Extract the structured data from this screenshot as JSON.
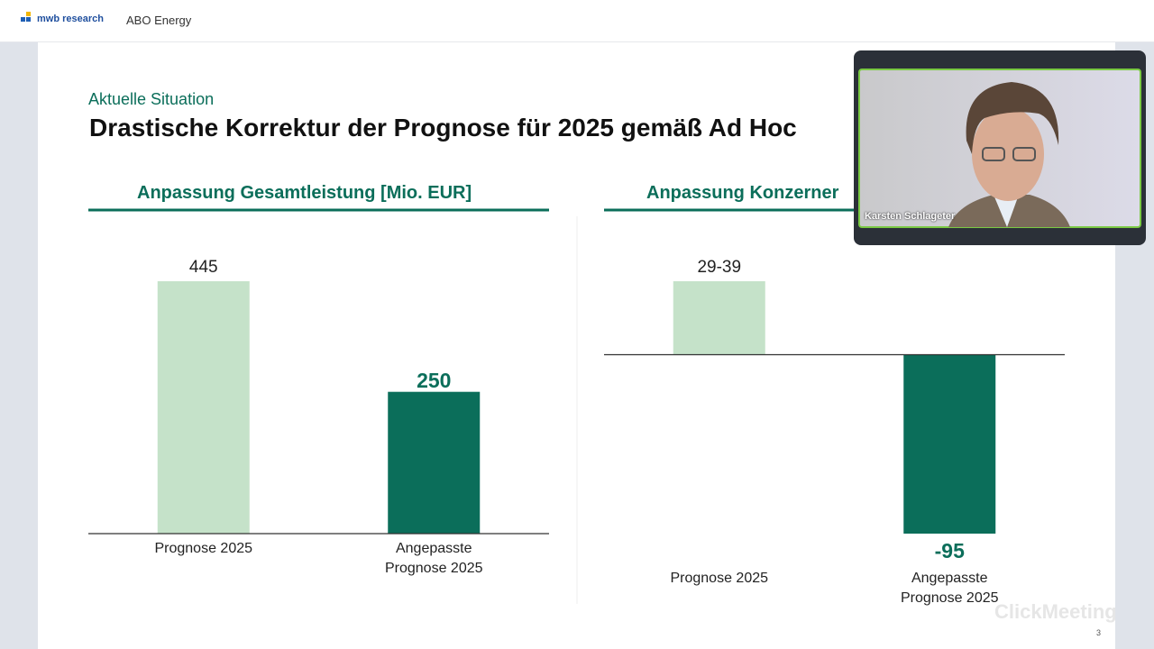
{
  "header": {
    "logo": "mwb research",
    "title": "ABO Energy"
  },
  "slide": {
    "kicker": "Aktuelle Situation",
    "title": "Drastische Korrektur der Prognose für 2025 gemäß Ad Hoc",
    "page_number": "3",
    "charts": [
      {
        "type": "bar",
        "title": "Anpassung Gesamtleistung [Mio. EUR]",
        "categories": [
          "Prognose 2025",
          "Angepasste Prognose 2025"
        ],
        "values": [
          445,
          250
        ],
        "colors": [
          "#c5e2c9",
          "#0b6e5a"
        ]
      },
      {
        "type": "bar",
        "title": "Anpassung Konzerner",
        "categories": [
          "Prognose 2025",
          "Angepasste Prognose 2025"
        ],
        "values": [
          39,
          -95
        ],
        "value_labels": [
          "29-39",
          "-95"
        ],
        "colors": [
          "#c5e2c9",
          "#0b6e5a"
        ]
      }
    ]
  },
  "video": {
    "name": "Karsten Schlageter"
  },
  "watermark": "ClickMeeting"
}
